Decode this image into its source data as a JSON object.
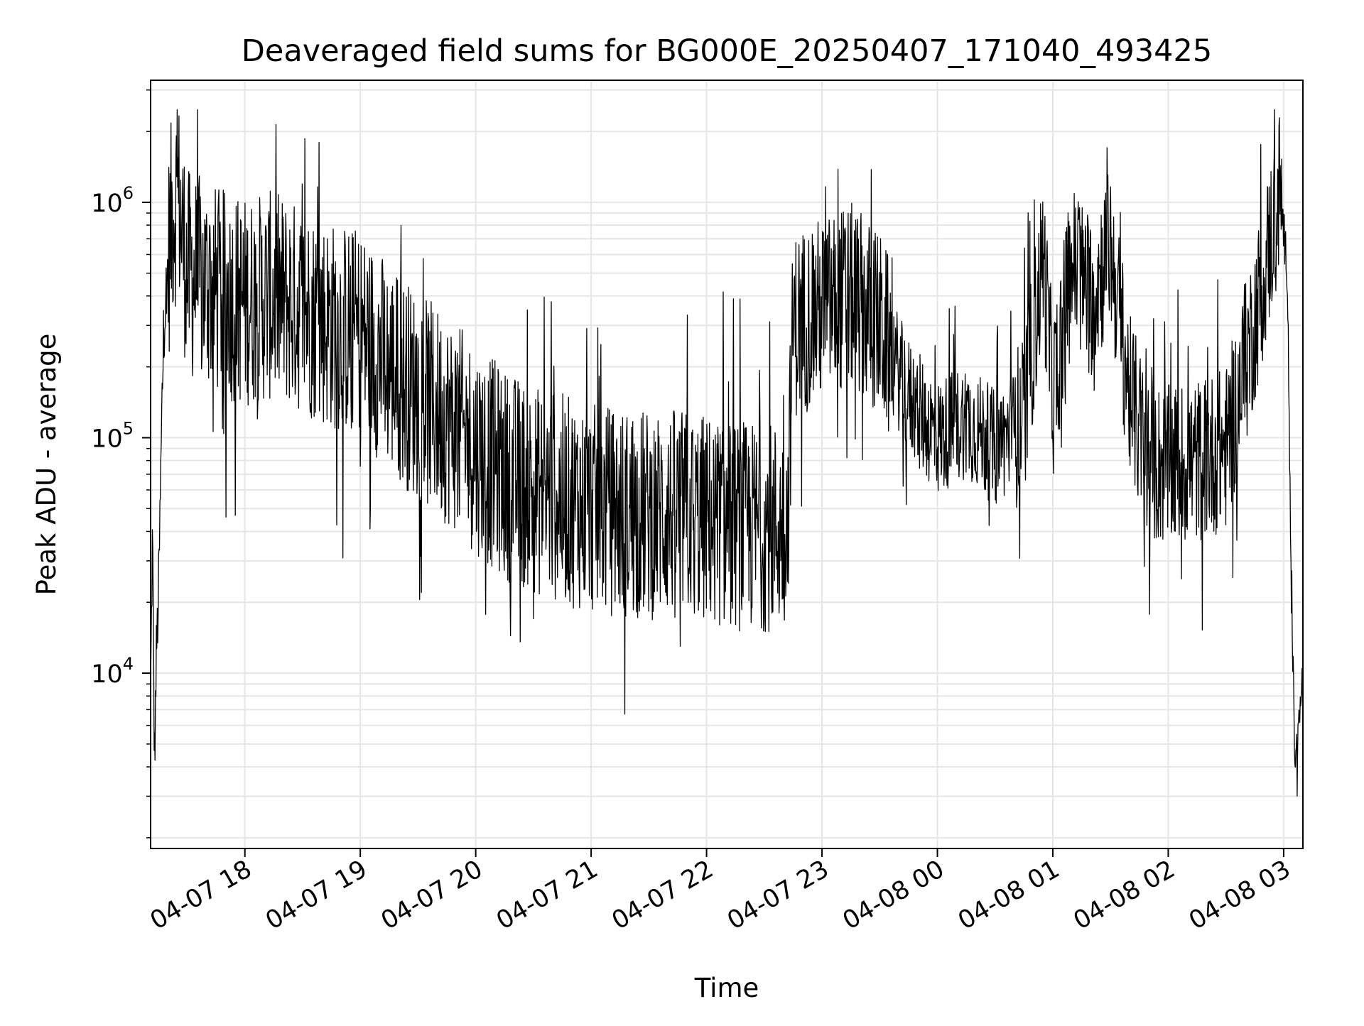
{
  "chart_data": {
    "type": "line",
    "title": "Deaveraged field sums for BG000E_20250407_171040_493425",
    "xlabel": "Time",
    "ylabel": "Peak ADU - average",
    "yscale": "log",
    "ylim": [
      1800,
      3300000
    ],
    "xlim": [
      "2025-04-07 17:11",
      "2025-04-08 03:10"
    ],
    "grid": true,
    "line_color": "#000000",
    "grid_color": "#e6e6e6",
    "x_ticks": [
      {
        "value": "2025-04-07 18:00",
        "label": "04-07 18"
      },
      {
        "value": "2025-04-07 19:00",
        "label": "04-07 19"
      },
      {
        "value": "2025-04-07 20:00",
        "label": "04-07 20"
      },
      {
        "value": "2025-04-07 21:00",
        "label": "04-07 21"
      },
      {
        "value": "2025-04-07 22:00",
        "label": "04-07 22"
      },
      {
        "value": "2025-04-07 23:00",
        "label": "04-07 23"
      },
      {
        "value": "2025-04-08 00:00",
        "label": "04-08 00"
      },
      {
        "value": "2025-04-08 01:00",
        "label": "04-08 01"
      },
      {
        "value": "2025-04-08 02:00",
        "label": "04-08 02"
      },
      {
        "value": "2025-04-08 03:00",
        "label": "04-08 03"
      }
    ],
    "y_ticks": [
      {
        "value": 10000,
        "base": "10",
        "exponent": "4"
      },
      {
        "value": 100000,
        "base": "10",
        "exponent": "5"
      },
      {
        "value": 1000000,
        "base": "10",
        "exponent": "6"
      }
    ],
    "series": [
      {
        "points": [
          [
            "2025-04-07 17:11",
            8000
          ],
          [
            "2025-04-07 17:12",
            40000
          ],
          [
            "2025-04-07 17:13",
            4000
          ],
          [
            "2025-04-07 17:14",
            12000
          ],
          [
            "2025-04-07 17:15",
            20000
          ],
          [
            "2025-04-07 17:16",
            50000
          ],
          [
            "2025-04-07 17:17",
            150000
          ],
          [
            "2025-04-07 17:18",
            300000
          ],
          [
            "2025-04-07 17:20",
            550000
          ],
          [
            "2025-04-07 17:22",
            850000
          ],
          [
            "2025-04-07 17:25",
            1100000
          ],
          [
            "2025-04-07 17:30",
            500000
          ],
          [
            "2025-04-07 17:40",
            450000
          ],
          [
            "2025-04-07 17:50",
            400000
          ],
          [
            "2025-04-07 18:00",
            380000
          ],
          [
            "2025-04-07 18:15",
            400000
          ],
          [
            "2025-04-07 18:30",
            350000
          ],
          [
            "2025-04-07 18:45",
            300000
          ],
          [
            "2025-04-07 19:00",
            280000
          ],
          [
            "2025-04-07 19:15",
            200000
          ],
          [
            "2025-04-07 19:30",
            150000
          ],
          [
            "2025-04-07 19:45",
            120000
          ],
          [
            "2025-04-07 20:00",
            90000
          ],
          [
            "2025-04-07 20:15",
            70000
          ],
          [
            "2025-04-07 20:30",
            60000
          ],
          [
            "2025-04-07 20:45",
            55000
          ],
          [
            "2025-04-07 21:00",
            50000
          ],
          [
            "2025-04-07 21:15",
            48000
          ],
          [
            "2025-04-07 21:30",
            47000
          ],
          [
            "2025-04-07 21:45",
            48000
          ],
          [
            "2025-04-07 22:00",
            45000
          ],
          [
            "2025-04-07 22:15",
            42000
          ],
          [
            "2025-04-07 22:30",
            42000
          ],
          [
            "2025-04-07 22:42",
            42000
          ],
          [
            "2025-04-07 22:45",
            300000
          ],
          [
            "2025-04-07 23:00",
            350000
          ],
          [
            "2025-04-07 23:15",
            400000
          ],
          [
            "2025-04-07 23:30",
            300000
          ],
          [
            "2025-04-07 23:45",
            150000
          ],
          [
            "2025-04-08 00:00",
            100000
          ],
          [
            "2025-04-08 00:15",
            120000
          ],
          [
            "2025-04-08 00:30",
            90000
          ],
          [
            "2025-04-08 00:45",
            120000
          ],
          [
            "2025-04-08 00:55",
            600000
          ],
          [
            "2025-04-08 01:00",
            150000
          ],
          [
            "2025-04-08 01:10",
            550000
          ],
          [
            "2025-04-08 01:20",
            400000
          ],
          [
            "2025-04-08 01:30",
            650000
          ],
          [
            "2025-04-08 01:40",
            150000
          ],
          [
            "2025-04-08 01:50",
            80000
          ],
          [
            "2025-04-08 02:00",
            75000
          ],
          [
            "2025-04-08 02:15",
            80000
          ],
          [
            "2025-04-08 02:30",
            90000
          ],
          [
            "2025-04-08 02:40",
            200000
          ],
          [
            "2025-04-08 02:50",
            500000
          ],
          [
            "2025-04-08 02:58",
            1150000
          ],
          [
            "2025-04-08 03:02",
            500000
          ],
          [
            "2025-04-08 03:04",
            20000
          ],
          [
            "2025-04-08 03:06",
            4000
          ],
          [
            "2025-04-08 03:08",
            6000
          ],
          [
            "2025-04-08 03:10",
            10000
          ]
        ]
      }
    ]
  }
}
